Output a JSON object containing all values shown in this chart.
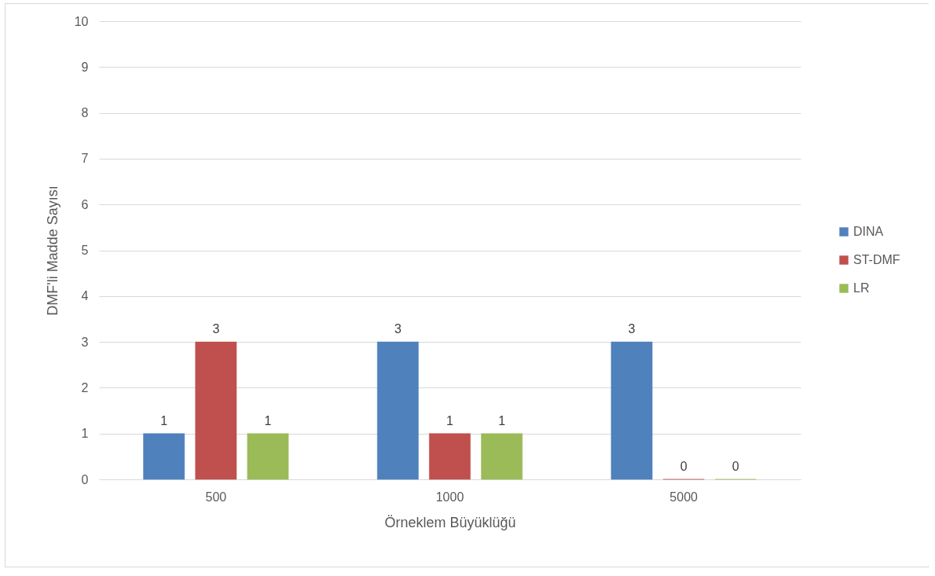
{
  "chart_data": {
    "type": "bar",
    "xlabel": "Örneklem Büyüklüğü",
    "ylabel": "DMF'li Madde Sayısı",
    "categories": [
      "500",
      "1000",
      "5000"
    ],
    "series": [
      {
        "name": "DINA",
        "color": "#4f81bd",
        "values": [
          1,
          3,
          3
        ]
      },
      {
        "name": "ST-DMF",
        "color": "#c0504d",
        "values": [
          3,
          1,
          0
        ]
      },
      {
        "name": "LR",
        "color": "#9bbb59",
        "values": [
          1,
          1,
          0
        ]
      }
    ],
    "ylim": [
      0,
      10
    ],
    "yticks": [
      0,
      1,
      2,
      3,
      4,
      5,
      6,
      7,
      8,
      9,
      10
    ],
    "grid": "y",
    "legend": "right",
    "data_labels": true
  }
}
